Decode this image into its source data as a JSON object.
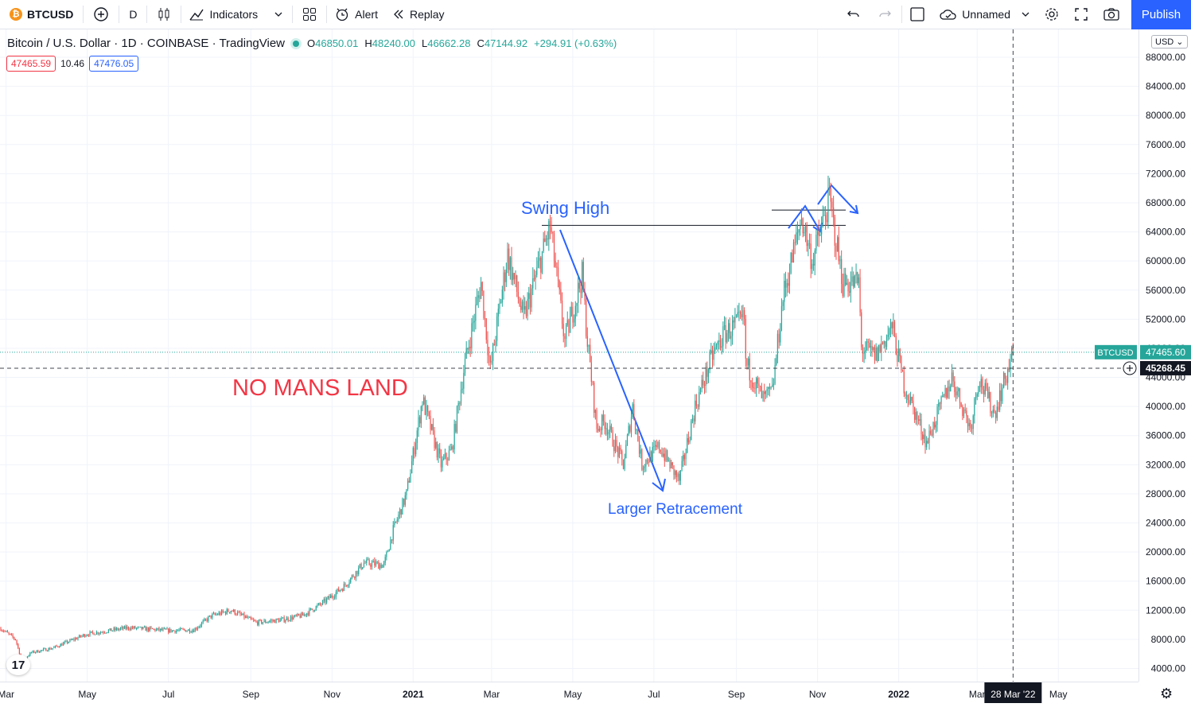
{
  "toolbar": {
    "symbol": "BTCUSD",
    "symbol_icon": "bitcoin-icon",
    "interval": "D",
    "indicators_label": "Indicators",
    "alert_label": "Alert",
    "replay_label": "Replay",
    "layout_name": "Unnamed",
    "publish_label": "Publish"
  },
  "legend": {
    "title": "Bitcoin / U.S. Dollar · 1D · COINBASE · TradingView",
    "o": "46850.01",
    "h": "48240.00",
    "l": "46662.28",
    "c": "47144.92",
    "change": "+294.91 (+0.63%)",
    "bid": "47465.59",
    "spread": "10.46",
    "ask": "47476.05"
  },
  "price_axis": {
    "currency": "USD",
    "ticks": [
      "88000.00",
      "84000.00",
      "80000.00",
      "76000.00",
      "72000.00",
      "68000.00",
      "64000.00",
      "60000.00",
      "56000.00",
      "52000.00",
      "48000.00",
      "44000.00",
      "40000.00",
      "36000.00",
      "32000.00",
      "28000.00",
      "24000.00",
      "20000.00",
      "16000.00",
      "12000.00",
      "8000.00",
      "4000.00"
    ],
    "last_symbol": "BTCUSD",
    "last_price": "47465.60",
    "crosshair_price": "45268.45"
  },
  "time_axis": {
    "labels": [
      {
        "t": "Mar",
        "d": "2020-03-01"
      },
      {
        "t": "May",
        "d": "2020-05-01"
      },
      {
        "t": "Jul",
        "d": "2020-07-01"
      },
      {
        "t": "Sep",
        "d": "2020-09-01"
      },
      {
        "t": "Nov",
        "d": "2020-11-01"
      },
      {
        "t": "2021",
        "d": "2021-01-01",
        "bold": true
      },
      {
        "t": "Mar",
        "d": "2021-03-01"
      },
      {
        "t": "May",
        "d": "2021-05-01"
      },
      {
        "t": "Jul",
        "d": "2021-07-01"
      },
      {
        "t": "Sep",
        "d": "2021-09-01"
      },
      {
        "t": "Nov",
        "d": "2021-11-01"
      },
      {
        "t": "2022",
        "d": "2022-01-01",
        "bold": true
      },
      {
        "t": "Mar",
        "d": "2022-03-01"
      },
      {
        "t": "May",
        "d": "2022-05-01"
      }
    ],
    "crosshair_date": "28 Mar '22"
  },
  "annotations": {
    "swing_high": "Swing High",
    "larger_retracement": "Larger Retracement",
    "no_mans_land": "NO MANS LAND"
  },
  "chart_data": {
    "type": "candlestick",
    "symbol": "BTCUSD",
    "ylim": [
      2000,
      90000
    ],
    "xlim": [
      "2020-02-26",
      "2022-05-20"
    ],
    "crosshair": {
      "date": "2022-03-28",
      "price": 45268.45
    },
    "last_price": 47465.6,
    "swing_high_level": 64900,
    "path": [
      [
        "2020-02-26",
        9500
      ],
      [
        "2020-03-08",
        8000
      ],
      [
        "2020-03-13",
        5000
      ],
      [
        "2020-03-20",
        6200
      ],
      [
        "2020-04-05",
        6800
      ],
      [
        "2020-04-30",
        8700
      ],
      [
        "2020-05-10",
        9000
      ],
      [
        "2020-06-01",
        9600
      ],
      [
        "2020-07-01",
        9200
      ],
      [
        "2020-07-20",
        9300
      ],
      [
        "2020-08-02",
        11200
      ],
      [
        "2020-08-17",
        12000
      ],
      [
        "2020-09-05",
        10300
      ],
      [
        "2020-09-25",
        10700
      ],
      [
        "2020-10-10",
        11300
      ],
      [
        "2020-10-25",
        13000
      ],
      [
        "2020-11-10",
        15300
      ],
      [
        "2020-11-25",
        18500
      ],
      [
        "2020-12-10",
        18200
      ],
      [
        "2020-12-17",
        23000
      ],
      [
        "2020-12-27",
        28000
      ],
      [
        "2021-01-08",
        41000
      ],
      [
        "2021-01-22",
        32000
      ],
      [
        "2021-01-30",
        34000
      ],
      [
        "2021-02-08",
        45000
      ],
      [
        "2021-02-21",
        57000
      ],
      [
        "2021-02-28",
        45000
      ],
      [
        "2021-03-13",
        61000
      ],
      [
        "2021-03-25",
        52000
      ],
      [
        "2021-04-14",
        64800
      ],
      [
        "2021-04-25",
        49000
      ],
      [
        "2021-05-08",
        58000
      ],
      [
        "2021-05-12",
        49000
      ],
      [
        "2021-05-19",
        37000
      ],
      [
        "2021-05-25",
        38000
      ],
      [
        "2021-06-08",
        32000
      ],
      [
        "2021-06-15",
        40000
      ],
      [
        "2021-06-22",
        32000
      ],
      [
        "2021-07-05",
        34500
      ],
      [
        "2021-07-20",
        29800
      ],
      [
        "2021-08-01",
        40000
      ],
      [
        "2021-08-14",
        47000
      ],
      [
        "2021-08-23",
        50000
      ],
      [
        "2021-09-07",
        52000
      ],
      [
        "2021-09-08",
        46000
      ],
      [
        "2021-09-21",
        41000
      ],
      [
        "2021-09-28",
        42000
      ],
      [
        "2021-10-06",
        55000
      ],
      [
        "2021-10-20",
        66000
      ],
      [
        "2021-10-28",
        60000
      ],
      [
        "2021-11-10",
        68500
      ],
      [
        "2021-11-20",
        57000
      ],
      [
        "2021-12-02",
        57000
      ],
      [
        "2021-12-04",
        48000
      ],
      [
        "2021-12-15",
        47000
      ],
      [
        "2021-12-27",
        51000
      ],
      [
        "2022-01-05",
        43000
      ],
      [
        "2022-01-22",
        35000
      ],
      [
        "2022-02-10",
        44000
      ],
      [
        "2022-02-24",
        37000
      ],
      [
        "2022-03-02",
        44000
      ],
      [
        "2022-03-14",
        39000
      ],
      [
        "2022-03-28",
        47400
      ]
    ]
  }
}
